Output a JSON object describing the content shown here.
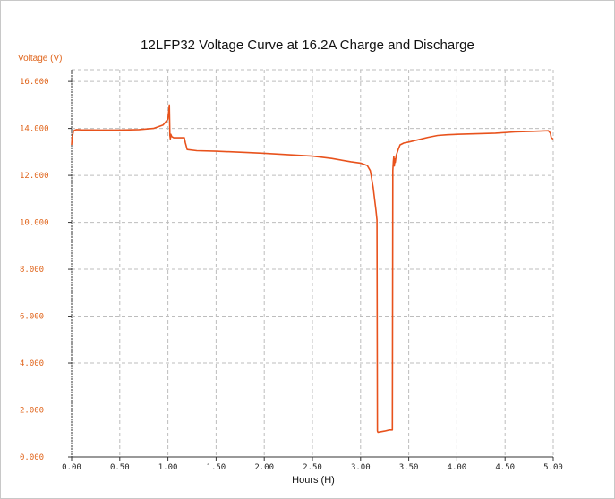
{
  "chart_data": {
    "type": "line",
    "title": "12LFP32 Voltage Curve at 16.2A Charge and Discharge",
    "xlabel": "Hours (H)",
    "ylabel": "Voltage (V)",
    "xlim": [
      0,
      5
    ],
    "ylim": [
      0,
      16.5
    ],
    "grid": true,
    "x_ticks": [
      "0.00",
      "0.50",
      "1.00",
      "1.50",
      "2.00",
      "2.50",
      "3.00",
      "3.50",
      "4.00",
      "4.50",
      "5.00"
    ],
    "y_ticks": [
      "0.000",
      "2.000",
      "4.000",
      "6.000",
      "8.000",
      "10.000",
      "12.000",
      "14.000",
      "16.000"
    ],
    "colors": {
      "line": "#e8521c",
      "axis_text": "#e0641b",
      "grid": "#bdbdbd"
    },
    "series": [
      {
        "points": [
          [
            0.0,
            13.3
          ],
          [
            0.005,
            13.6
          ],
          [
            0.02,
            13.9
          ],
          [
            0.05,
            13.95
          ],
          [
            0.1,
            13.94
          ],
          [
            0.3,
            13.93
          ],
          [
            0.5,
            13.93
          ],
          [
            0.7,
            13.95
          ],
          [
            0.85,
            14.0
          ],
          [
            0.95,
            14.15
          ],
          [
            1.0,
            14.4
          ],
          [
            1.01,
            14.8
          ],
          [
            1.015,
            15.0
          ],
          [
            1.02,
            13.7
          ],
          [
            1.025,
            13.55
          ],
          [
            1.03,
            13.75
          ],
          [
            1.04,
            13.65
          ],
          [
            1.06,
            13.6
          ],
          [
            1.1,
            13.6
          ],
          [
            1.17,
            13.6
          ],
          [
            1.18,
            13.4
          ],
          [
            1.2,
            13.1
          ],
          [
            1.3,
            13.05
          ],
          [
            1.5,
            13.03
          ],
          [
            1.8,
            12.98
          ],
          [
            2.0,
            12.94
          ],
          [
            2.3,
            12.87
          ],
          [
            2.5,
            12.82
          ],
          [
            2.7,
            12.72
          ],
          [
            2.9,
            12.58
          ],
          [
            3.0,
            12.52
          ],
          [
            3.07,
            12.42
          ],
          [
            3.1,
            12.2
          ],
          [
            3.13,
            11.5
          ],
          [
            3.16,
            10.5
          ],
          [
            3.17,
            10.1
          ],
          [
            3.175,
            1.1
          ],
          [
            3.18,
            1.05
          ],
          [
            3.25,
            1.1
          ],
          [
            3.3,
            1.15
          ],
          [
            3.33,
            1.15
          ],
          [
            3.335,
            12.2
          ],
          [
            3.34,
            12.6
          ],
          [
            3.345,
            12.8
          ],
          [
            3.35,
            12.4
          ],
          [
            3.355,
            12.7
          ],
          [
            3.36,
            12.55
          ],
          [
            3.37,
            12.85
          ],
          [
            3.39,
            13.1
          ],
          [
            3.41,
            13.3
          ],
          [
            3.45,
            13.38
          ],
          [
            3.5,
            13.42
          ],
          [
            3.6,
            13.52
          ],
          [
            3.7,
            13.62
          ],
          [
            3.8,
            13.7
          ],
          [
            3.9,
            13.73
          ],
          [
            4.0,
            13.75
          ],
          [
            4.2,
            13.77
          ],
          [
            4.4,
            13.8
          ],
          [
            4.6,
            13.85
          ],
          [
            4.8,
            13.88
          ],
          [
            4.95,
            13.9
          ],
          [
            4.97,
            13.8
          ],
          [
            4.98,
            13.6
          ],
          [
            5.0,
            13.55
          ]
        ]
      }
    ]
  }
}
